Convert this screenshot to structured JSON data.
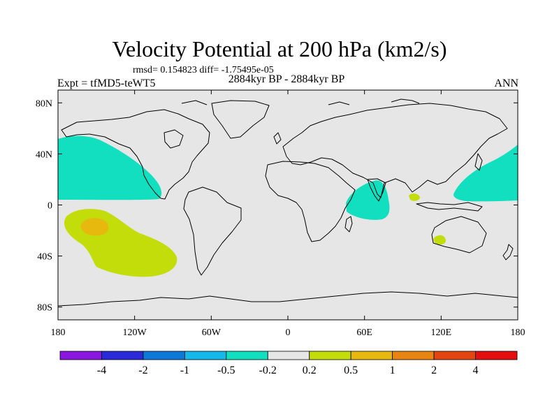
{
  "chart_data": {
    "type": "contour-map",
    "title": "Velocity Potential at 200 hPa (km2/s)",
    "stats": "rmsd= 0.154823 diff= -1.75495e-05",
    "left_label": "Expt = tfMD5-teWT5",
    "center_label": "2884kyr BP - 2884kyr BP",
    "right_label": "ANN",
    "xlim": [
      -180,
      180
    ],
    "ylim": [
      -90,
      90
    ],
    "x_ticks": [
      {
        "value": -180,
        "label": "180"
      },
      {
        "value": -120,
        "label": "120W"
      },
      {
        "value": -60,
        "label": "60W"
      },
      {
        "value": 0,
        "label": "0"
      },
      {
        "value": 60,
        "label": "60E"
      },
      {
        "value": 120,
        "label": "120E"
      },
      {
        "value": 180,
        "label": "180"
      }
    ],
    "y_ticks": [
      {
        "value": 80,
        "label": "80N"
      },
      {
        "value": 40,
        "label": "40N"
      },
      {
        "value": 0,
        "label": "0"
      },
      {
        "value": -40,
        "label": "40S"
      },
      {
        "value": -80,
        "label": "80S"
      }
    ],
    "background_color": "#e6e6e6",
    "colorbar": {
      "colors": [
        "#8a17e0",
        "#2a2ad8",
        "#0e78d8",
        "#16b8ea",
        "#11dfbf",
        "#e6e6e6",
        "#c3dd0b",
        "#e7b90f",
        "#e88512",
        "#e24510",
        "#e50e0e"
      ],
      "labels": [
        "-4",
        "-2",
        "-1",
        "-0.5",
        "-0.2",
        "0.2",
        "0.5",
        "1",
        "2",
        "4"
      ]
    },
    "regions": [
      {
        "name": "north-pacific-negative",
        "level": "-0.5 to -0.2",
        "color": "#11dfbf"
      },
      {
        "name": "indian-ocean-negative",
        "level": "-0.5 to -0.2",
        "color": "#11dfbf"
      },
      {
        "name": "west-pacific-negative",
        "level": "-0.5 to -0.2",
        "color": "#11dfbf"
      },
      {
        "name": "south-pacific-positive",
        "level": "0.2 to 0.5",
        "color": "#c3dd0b"
      },
      {
        "name": "south-pacific-core-positive",
        "level": "0.5 to 1",
        "color": "#e7b90f"
      },
      {
        "name": "australia-positive",
        "level": "0.2 to 0.5",
        "color": "#c3dd0b"
      },
      {
        "name": "indochina-positive",
        "level": "0.2 to 0.5",
        "color": "#c3dd0b"
      }
    ]
  }
}
